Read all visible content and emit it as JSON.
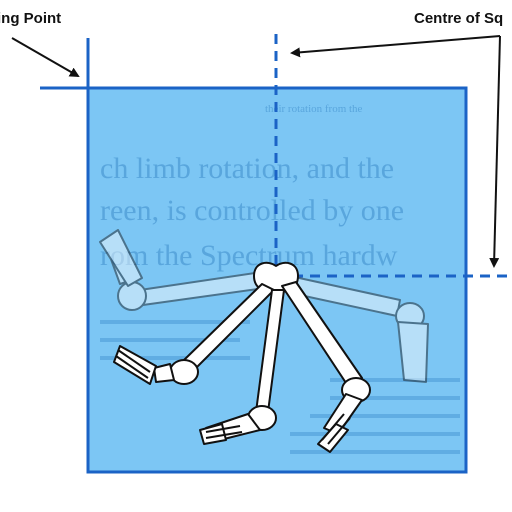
{
  "labels": {
    "starting_point": "ting Point",
    "centre_of_square": "Centre of Sq"
  },
  "background_text": {
    "top_caption": "their rotation from the",
    "line1": "ch limb rotation, and the",
    "line2": "reen, is controlled by one",
    "line3": "rom the Spectrum hardw"
  },
  "colors": {
    "square_fill": "#4ab0f0",
    "square_border": "#1b63c6",
    "guide_line": "#1b63c6",
    "arrow": "#111111",
    "bone_fill": "#ffffff",
    "bone_stroke": "#111111"
  },
  "icons": {
    "figure": "skeleton-legs-icon"
  }
}
